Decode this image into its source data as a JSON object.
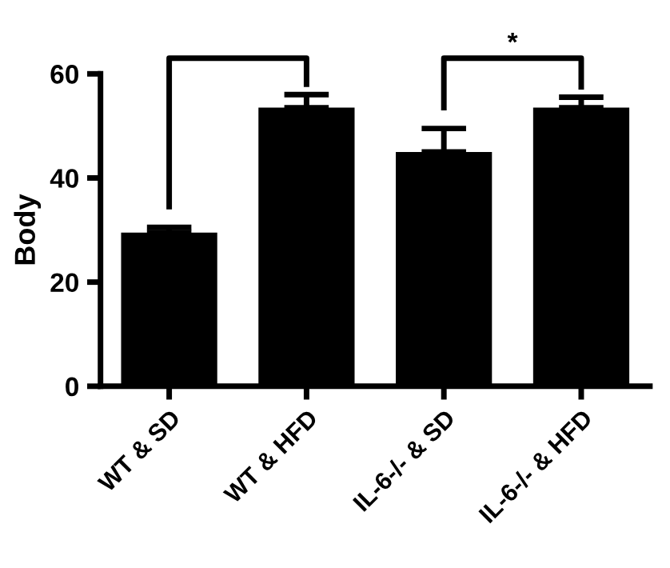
{
  "chart_data": {
    "type": "bar",
    "ylabel": "Body",
    "categories": [
      "WT & SD",
      "WT & HFD",
      "IL-6-/- & SD",
      "IL-6-/- & HFD"
    ],
    "values": [
      29.5,
      53.5,
      45,
      53.5
    ],
    "errors": [
      1,
      2.5,
      4.5,
      2
    ],
    "color": "#000000",
    "ylim": [
      0,
      60
    ],
    "yticks": [
      0,
      20,
      40,
      60
    ],
    "grid": false,
    "legend": false,
    "annotations": [
      "*"
    ]
  }
}
